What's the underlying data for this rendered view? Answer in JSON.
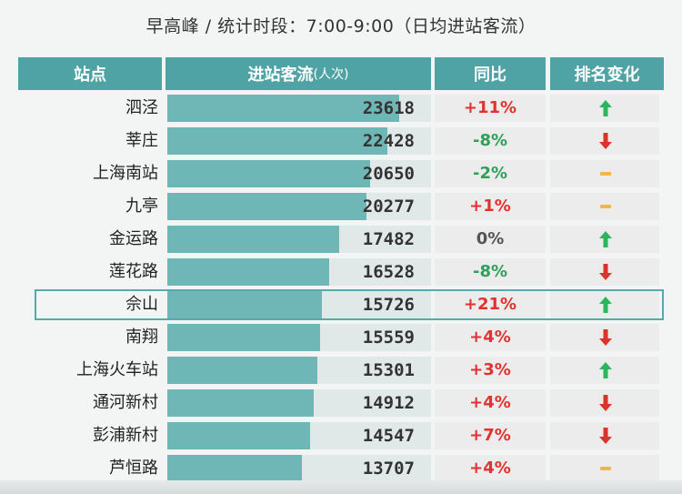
{
  "subtitle": "早高峰 /  统计时段：7:00-9:00（日均进站客流）",
  "colors": {
    "header": "#4fa3a5",
    "bar": "#6fb6b7",
    "positive": "#e0322f",
    "negative": "#2fa05a",
    "neutral": "#555555",
    "up": "#2db55d",
    "down": "#d9342b",
    "same": "#f2b54a"
  },
  "chart_data": {
    "type": "table",
    "columns": {
      "station": "站点",
      "flow": "进站客流",
      "flow_unit": "(人次)",
      "yoy": "同比",
      "rank": "排名变化"
    },
    "rows": [
      {
        "station": "泗泾",
        "value": 23618,
        "yoy": "+11%",
        "rank": "up"
      },
      {
        "station": "莘庄",
        "value": 22428,
        "yoy": "-8%",
        "rank": "down"
      },
      {
        "station": "上海南站",
        "value": 20650,
        "yoy": "-2%",
        "rank": "same"
      },
      {
        "station": "九亭",
        "value": 20277,
        "yoy": "+1%",
        "rank": "same"
      },
      {
        "station": "金运路",
        "value": 17482,
        "yoy": "0%",
        "rank": "up"
      },
      {
        "station": "莲花路",
        "value": 16528,
        "yoy": "-8%",
        "rank": "down"
      },
      {
        "station": "佘山",
        "value": 15726,
        "yoy": "+21%",
        "rank": "up",
        "highlight": true
      },
      {
        "station": "南翔",
        "value": 15559,
        "yoy": "+4%",
        "rank": "down"
      },
      {
        "station": "上海火车站",
        "value": 15301,
        "yoy": "+3%",
        "rank": "up"
      },
      {
        "station": "通河新村",
        "value": 14912,
        "yoy": "+4%",
        "rank": "down"
      },
      {
        "station": "彭浦新村",
        "value": 14547,
        "yoy": "+7%",
        "rank": "down"
      },
      {
        "station": "芦恒路",
        "value": 13707,
        "yoy": "+4%",
        "rank": "same"
      }
    ],
    "bar_max": 23618
  }
}
